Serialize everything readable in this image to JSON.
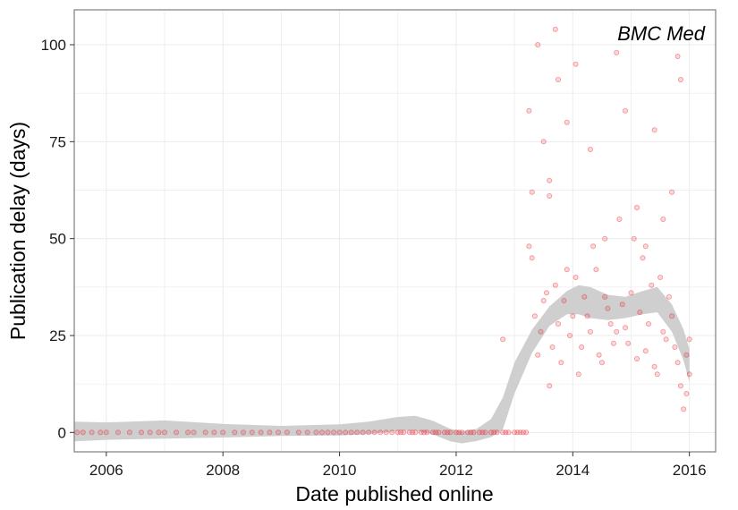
{
  "chart_data": {
    "type": "scatter",
    "title": "",
    "panel_label": "BMC Med",
    "xlabel": "Date published online",
    "ylabel": "Publication delay (days)",
    "xlim": [
      2005.45,
      2016.45
    ],
    "ylim": [
      -5,
      109
    ],
    "x_ticks": [
      2006,
      2008,
      2010,
      2012,
      2014,
      2016
    ],
    "x_tick_labels": [
      "2006",
      "2008",
      "2010",
      "2012",
      "2014",
      "2016"
    ],
    "y_ticks": [
      0,
      25,
      50,
      75,
      100
    ],
    "y_tick_labels": [
      "0",
      "25",
      "50",
      "75",
      "100"
    ],
    "grid": true,
    "colors": {
      "points": "#e8202a",
      "smooth_band": "#cccccc",
      "grid": "#ebebeb",
      "frame": "#7f7f7f"
    },
    "points": [
      [
        2005.5,
        0
      ],
      [
        2005.6,
        0
      ],
      [
        2005.75,
        0
      ],
      [
        2005.9,
        0
      ],
      [
        2006.0,
        0
      ],
      [
        2006.2,
        0
      ],
      [
        2006.4,
        0
      ],
      [
        2006.6,
        0
      ],
      [
        2006.75,
        0
      ],
      [
        2006.9,
        0
      ],
      [
        2007.0,
        0
      ],
      [
        2007.2,
        0
      ],
      [
        2007.4,
        0
      ],
      [
        2007.5,
        0
      ],
      [
        2007.7,
        0
      ],
      [
        2007.85,
        0
      ],
      [
        2008.0,
        0
      ],
      [
        2008.2,
        0
      ],
      [
        2008.35,
        0
      ],
      [
        2008.5,
        0
      ],
      [
        2008.65,
        0
      ],
      [
        2008.8,
        0
      ],
      [
        2008.95,
        0
      ],
      [
        2009.1,
        0
      ],
      [
        2009.3,
        0
      ],
      [
        2009.45,
        0
      ],
      [
        2009.6,
        0
      ],
      [
        2009.7,
        0
      ],
      [
        2009.8,
        0
      ],
      [
        2009.9,
        0
      ],
      [
        2010.0,
        0
      ],
      [
        2010.1,
        0
      ],
      [
        2010.2,
        0
      ],
      [
        2010.3,
        0
      ],
      [
        2010.4,
        0
      ],
      [
        2010.5,
        0
      ],
      [
        2010.6,
        0
      ],
      [
        2010.7,
        0
      ],
      [
        2010.8,
        0
      ],
      [
        2010.9,
        0
      ],
      [
        2011.0,
        0
      ],
      [
        2011.05,
        0
      ],
      [
        2011.1,
        0
      ],
      [
        2011.2,
        0
      ],
      [
        2011.25,
        0
      ],
      [
        2011.3,
        0
      ],
      [
        2011.4,
        0
      ],
      [
        2011.45,
        0
      ],
      [
        2011.5,
        0
      ],
      [
        2011.6,
        0
      ],
      [
        2011.65,
        0
      ],
      [
        2011.7,
        0
      ],
      [
        2011.8,
        0
      ],
      [
        2011.85,
        0
      ],
      [
        2011.9,
        0
      ],
      [
        2012.0,
        0
      ],
      [
        2012.05,
        0
      ],
      [
        2012.1,
        0
      ],
      [
        2012.2,
        0
      ],
      [
        2012.25,
        0
      ],
      [
        2012.3,
        0
      ],
      [
        2012.4,
        0
      ],
      [
        2012.45,
        0
      ],
      [
        2012.5,
        0
      ],
      [
        2012.6,
        0
      ],
      [
        2012.65,
        0
      ],
      [
        2012.7,
        0
      ],
      [
        2012.8,
        0
      ],
      [
        2012.85,
        0
      ],
      [
        2012.9,
        0
      ],
      [
        2013.0,
        0
      ],
      [
        2013.05,
        0
      ],
      [
        2013.1,
        0
      ],
      [
        2013.15,
        0
      ],
      [
        2013.2,
        0
      ],
      [
        2012.8,
        24
      ],
      [
        2013.25,
        83
      ],
      [
        2013.4,
        100
      ],
      [
        2013.7,
        104
      ],
      [
        2013.75,
        91
      ],
      [
        2013.5,
        75
      ],
      [
        2013.3,
        62
      ],
      [
        2013.6,
        61
      ],
      [
        2013.9,
        80
      ],
      [
        2014.05,
        95
      ],
      [
        2014.3,
        73
      ],
      [
        2014.75,
        98
      ],
      [
        2014.9,
        83
      ],
      [
        2015.1,
        58
      ],
      [
        2015.4,
        78
      ],
      [
        2015.8,
        97
      ],
      [
        2015.85,
        91
      ],
      [
        2015.7,
        62
      ],
      [
        2015.95,
        20
      ],
      [
        2016.0,
        15
      ],
      [
        2013.25,
        48
      ],
      [
        2013.35,
        30
      ],
      [
        2013.45,
        26
      ],
      [
        2013.55,
        36
      ],
      [
        2013.65,
        22
      ],
      [
        2013.75,
        28
      ],
      [
        2013.85,
        34
      ],
      [
        2013.95,
        25
      ],
      [
        2014.05,
        40
      ],
      [
        2014.15,
        22
      ],
      [
        2014.25,
        30
      ],
      [
        2014.35,
        48
      ],
      [
        2014.45,
        20
      ],
      [
        2014.55,
        35
      ],
      [
        2014.65,
        28
      ],
      [
        2014.75,
        26
      ],
      [
        2014.85,
        33
      ],
      [
        2014.95,
        23
      ],
      [
        2015.05,
        50
      ],
      [
        2015.15,
        31
      ],
      [
        2015.25,
        21
      ],
      [
        2015.35,
        38
      ],
      [
        2015.45,
        15
      ],
      [
        2015.55,
        26
      ],
      [
        2015.65,
        35
      ],
      [
        2015.75,
        22
      ],
      [
        2015.85,
        12
      ],
      [
        2015.95,
        10
      ],
      [
        2016.0,
        24
      ],
      [
        2015.9,
        6
      ],
      [
        2013.3,
        45
      ],
      [
        2013.4,
        20
      ],
      [
        2013.5,
        34
      ],
      [
        2013.6,
        12
      ],
      [
        2013.7,
        38
      ],
      [
        2013.8,
        18
      ],
      [
        2013.9,
        42
      ],
      [
        2014.0,
        30
      ],
      [
        2014.1,
        15
      ],
      [
        2014.2,
        35
      ],
      [
        2014.3,
        26
      ],
      [
        2014.4,
        42
      ],
      [
        2014.5,
        18
      ],
      [
        2014.6,
        32
      ],
      [
        2014.7,
        23
      ],
      [
        2014.8,
        55
      ],
      [
        2014.9,
        27
      ],
      [
        2015.0,
        36
      ],
      [
        2015.1,
        19
      ],
      [
        2015.2,
        45
      ],
      [
        2015.3,
        28
      ],
      [
        2015.4,
        17
      ],
      [
        2015.5,
        40
      ],
      [
        2015.6,
        24
      ],
      [
        2015.7,
        30
      ],
      [
        2015.8,
        18
      ],
      [
        2013.6,
        65
      ],
      [
        2014.55,
        50
      ],
      [
        2015.25,
        48
      ],
      [
        2015.55,
        55
      ]
    ],
    "smooth_upper": [
      [
        2005.45,
        2.8
      ],
      [
        2006.0,
        2.6
      ],
      [
        2007.0,
        3.1
      ],
      [
        2008.0,
        2.2
      ],
      [
        2009.0,
        1.7
      ],
      [
        2010.0,
        2.1
      ],
      [
        2010.5,
        2.8
      ],
      [
        2011.0,
        4.0
      ],
      [
        2011.3,
        4.3
      ],
      [
        2011.6,
        3.0
      ],
      [
        2011.9,
        0.9
      ],
      [
        2012.1,
        0.3
      ],
      [
        2012.35,
        0.9
      ],
      [
        2012.6,
        3.5
      ],
      [
        2012.8,
        9.0
      ],
      [
        2013.0,
        18.0
      ],
      [
        2013.3,
        26.5
      ],
      [
        2013.6,
        32.5
      ],
      [
        2013.9,
        36.5
      ],
      [
        2014.1,
        38.0
      ],
      [
        2014.3,
        37.5
      ],
      [
        2014.6,
        35.5
      ],
      [
        2014.9,
        35.0
      ],
      [
        2015.2,
        36.5
      ],
      [
        2015.45,
        37.5
      ],
      [
        2015.7,
        33.0
      ],
      [
        2015.9,
        26.5
      ],
      [
        2016.0,
        21.5
      ]
    ],
    "smooth_lower": [
      [
        2005.45,
        -2.3
      ],
      [
        2006.0,
        -1.9
      ],
      [
        2007.0,
        -1.6
      ],
      [
        2008.0,
        -1.3
      ],
      [
        2009.0,
        -0.9
      ],
      [
        2010.0,
        -0.8
      ],
      [
        2010.5,
        -0.4
      ],
      [
        2011.0,
        0.4
      ],
      [
        2011.3,
        0.5
      ],
      [
        2011.6,
        -0.5
      ],
      [
        2011.9,
        -2.3
      ],
      [
        2012.1,
        -2.8
      ],
      [
        2012.35,
        -2.2
      ],
      [
        2012.6,
        -1.2
      ],
      [
        2012.8,
        0.8
      ],
      [
        2013.0,
        10.0
      ],
      [
        2013.3,
        20.5
      ],
      [
        2013.6,
        27.5
      ],
      [
        2013.9,
        30.5
      ],
      [
        2014.1,
        30.5
      ],
      [
        2014.3,
        29.5
      ],
      [
        2014.6,
        29.0
      ],
      [
        2014.9,
        29.5
      ],
      [
        2015.2,
        30.5
      ],
      [
        2015.45,
        31.0
      ],
      [
        2015.7,
        26.0
      ],
      [
        2015.9,
        18.5
      ],
      [
        2016.0,
        13.0
      ]
    ]
  }
}
